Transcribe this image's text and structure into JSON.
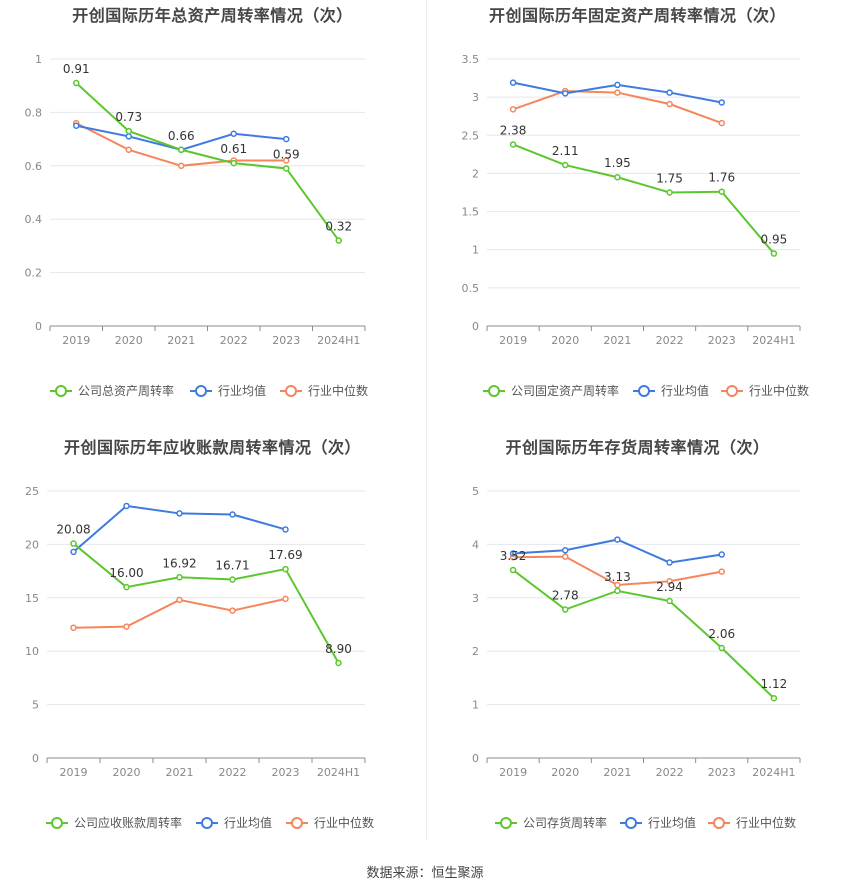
{
  "source_text": "数据来源：恒生聚源",
  "colors": {
    "company": "#5cc72d",
    "avg": "#3f7ae0",
    "median": "#f5865c",
    "grid": "#e4e6ef",
    "axis": "#8c8c8c"
  },
  "chart_data": [
    {
      "type": "line",
      "title": "开创国际历年总资产周转率情况（次）",
      "categories": [
        "2019",
        "2020",
        "2021",
        "2022",
        "2023",
        "2024H1"
      ],
      "ylim": [
        0,
        1
      ],
      "yticks": [
        "0",
        "0.2",
        "0.4",
        "0.6",
        "0.8",
        "1"
      ],
      "series": [
        {
          "name": "公司总资产周转率",
          "values": [
            0.91,
            0.73,
            0.66,
            0.61,
            0.59,
            0.32
          ],
          "labels": [
            "0.91",
            "0.73",
            "0.66",
            "0.61",
            "0.59",
            "0.32"
          ]
        },
        {
          "name": "行业均值",
          "values": [
            0.75,
            0.71,
            0.66,
            0.72,
            0.7,
            null
          ]
        },
        {
          "name": "行业中位数",
          "values": [
            0.76,
            0.66,
            0.6,
            0.62,
            0.62,
            null
          ]
        }
      ]
    },
    {
      "type": "line",
      "title": "开创国际历年固定资产周转率情况（次）",
      "categories": [
        "2019",
        "2020",
        "2021",
        "2022",
        "2023",
        "2024H1"
      ],
      "ylim": [
        0,
        3.5
      ],
      "yticks": [
        "0",
        "0.5",
        "1",
        "1.5",
        "2",
        "2.5",
        "3",
        "3.5"
      ],
      "series": [
        {
          "name": "公司固定资产周转率",
          "values": [
            2.38,
            2.11,
            1.95,
            1.75,
            1.76,
            0.95
          ],
          "labels": [
            "2.38",
            "2.11",
            "1.95",
            "1.75",
            "1.76",
            "0.95"
          ]
        },
        {
          "name": "行业均值",
          "values": [
            3.19,
            3.05,
            3.16,
            3.06,
            2.93,
            null
          ]
        },
        {
          "name": "行业中位数",
          "values": [
            2.84,
            3.08,
            3.06,
            2.91,
            2.66,
            null
          ]
        }
      ]
    },
    {
      "type": "line",
      "title": "开创国际历年应收账款周转率情况（次）",
      "categories": [
        "2019",
        "2020",
        "2021",
        "2022",
        "2023",
        "2024H1"
      ],
      "ylim": [
        0,
        25
      ],
      "yticks": [
        "0",
        "5",
        "10",
        "15",
        "20",
        "25"
      ],
      "series": [
        {
          "name": "公司应收账款周转率",
          "values": [
            20.08,
            16.0,
            16.92,
            16.71,
            17.69,
            8.9
          ],
          "labels": [
            "20.08",
            "16.00",
            "16.92",
            "16.71",
            "17.69",
            "8.90"
          ]
        },
        {
          "name": "行业均值",
          "values": [
            19.3,
            23.6,
            22.9,
            22.8,
            21.4,
            null
          ]
        },
        {
          "name": "行业中位数",
          "values": [
            12.2,
            12.3,
            14.8,
            13.8,
            14.9,
            null
          ]
        }
      ]
    },
    {
      "type": "line",
      "title": "开创国际历年存货周转率情况（次）",
      "categories": [
        "2019",
        "2020",
        "2021",
        "2022",
        "2023",
        "2024H1"
      ],
      "ylim": [
        0,
        5
      ],
      "yticks": [
        "0",
        "1",
        "2",
        "3",
        "4",
        "5"
      ],
      "series": [
        {
          "name": "公司存货周转率",
          "values": [
            3.52,
            2.78,
            3.13,
            2.94,
            2.06,
            1.12
          ],
          "labels": [
            "3.52",
            "2.78",
            "3.13",
            "2.94",
            "2.06",
            "1.12"
          ]
        },
        {
          "name": "行业均值",
          "values": [
            3.83,
            3.89,
            4.09,
            3.66,
            3.81,
            null
          ]
        },
        {
          "name": "行业中位数",
          "values": [
            3.76,
            3.77,
            3.24,
            3.31,
            3.49,
            null
          ]
        }
      ]
    }
  ]
}
